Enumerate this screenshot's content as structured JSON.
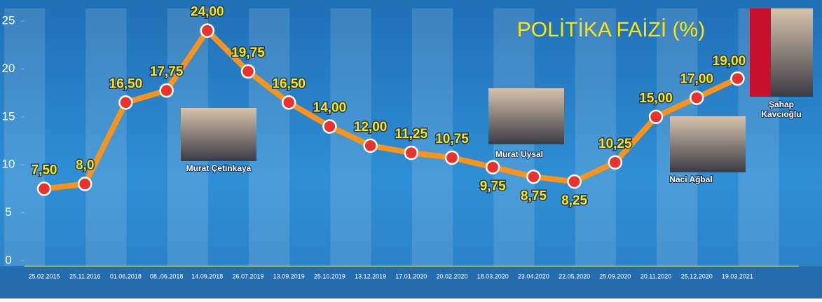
{
  "chart_data": {
    "type": "line",
    "title": "POLİTİKA FAİZİ (%)",
    "categories": [
      "25.02.2015",
      "25.11.2016",
      "01.06.2018",
      "08..06.2018",
      "14.09.2018",
      "26.07.2019",
      "13.09.2019",
      "25.10.2019",
      "13.12.2019",
      "17.01.2020",
      "20.02.2020",
      "18.03.2020",
      "23.04.2020",
      "22.05.2020",
      "25.09.2020",
      "20.11.2020",
      "25.12.2020",
      "19.03.2021"
    ],
    "values": [
      7.5,
      8,
      16.5,
      17.75,
      24,
      19.75,
      16.5,
      14,
      12,
      11.25,
      10.75,
      9.75,
      8.75,
      8.25,
      10.25,
      15,
      17,
      19
    ],
    "value_labels": [
      "7,50",
      "8,0",
      "16,50",
      "17,75",
      "24,00",
      "19,75",
      "16,50",
      "14,00",
      "12,00",
      "11,25",
      "10,75",
      "9,75",
      "8,75",
      "8,25",
      "10,25",
      "15,00",
      "17,00",
      "19,00"
    ],
    "color": "#f7941d",
    "marker_color": "#e8322c",
    "ylim": [
      0,
      25
    ],
    "yticks": [
      0,
      5,
      10,
      15,
      20,
      25
    ],
    "annotations": [
      "Murat Çetinkaya",
      "Murat Uysal",
      "Naci Ağbal",
      "Şahap",
      "Kavcıoğlu"
    ]
  }
}
